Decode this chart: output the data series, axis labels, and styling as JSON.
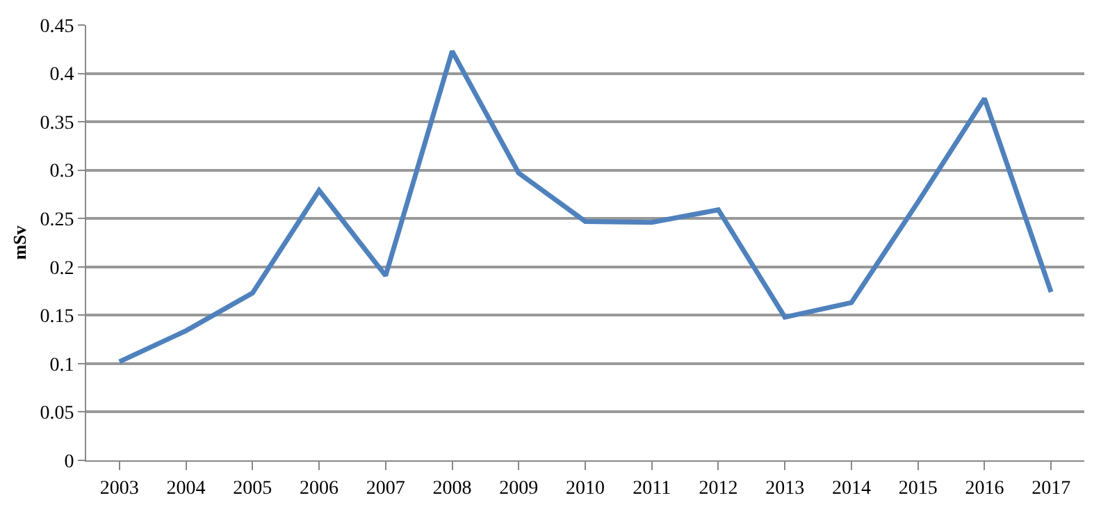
{
  "chart_data": {
    "type": "line",
    "ylabel": "mSv",
    "categories": [
      "2003",
      "2004",
      "2005",
      "2006",
      "2007",
      "2008",
      "2009",
      "2010",
      "2011",
      "2012",
      "2013",
      "2014",
      "2015",
      "2016",
      "2017"
    ],
    "series": [
      {
        "color": "#4f81bd",
        "values": [
          0.102,
          0.134,
          0.173,
          0.279,
          0.191,
          0.423,
          0.297,
          0.247,
          0.246,
          0.259,
          0.148,
          0.163,
          0.267,
          0.374,
          0.174
        ]
      }
    ],
    "ylim": [
      0,
      0.45
    ],
    "yticks": [
      0,
      0.05,
      0.1,
      0.15,
      0.2,
      0.25,
      0.3,
      0.35,
      0.4,
      0.45
    ],
    "grid": "y",
    "marker": "none",
    "line_style": "solid"
  }
}
